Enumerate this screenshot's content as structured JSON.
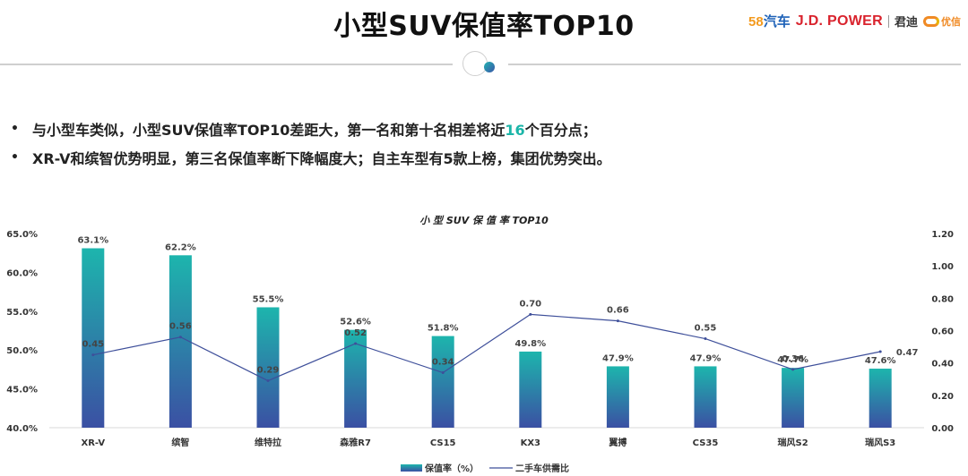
{
  "header": {
    "title": "小型SUV保值率TOP10",
    "logos": {
      "l58_num": "58",
      "l58_text": "汽车",
      "jd": "J.D. POWER",
      "jundi": "君迪",
      "youxin": "优信"
    }
  },
  "bullets": [
    {
      "prefix": "与小型车类似，小型SUV保值率TOP10差距大，第一名和第十名相差将近",
      "highlight": "16",
      "suffix": "个百分点；"
    },
    {
      "prefix": "XR-V和缤智优势明显，第三名保值率断下降幅度大；自主车型有5款上榜，集团优势突出。",
      "highlight": "",
      "suffix": ""
    }
  ],
  "bullet_marker": "•",
  "colors": {
    "bar_top": "#1db5ad",
    "bar_bottom": "#3b50a3",
    "line": "#3e4f9a",
    "accent": "#1bb5a8"
  },
  "chart_data": {
    "type": "bar+line",
    "title": "小 型 SUV 保 值 率 TOP10",
    "categories": [
      "XR-V",
      "缤智",
      "维特拉",
      "森雅R7",
      "CS15",
      "KX3",
      "翼搏",
      "CS35",
      "瑞风S2",
      "瑞风S3"
    ],
    "series": [
      {
        "name": "保值率（%）",
        "type": "bar",
        "axis": "left",
        "values": [
          63.1,
          62.2,
          55.5,
          52.6,
          51.8,
          49.8,
          47.9,
          47.9,
          47.7,
          47.6
        ],
        "labels": [
          "63.1%",
          "62.2%",
          "55.5%",
          "52.6%",
          "51.8%",
          "49.8%",
          "47.9%",
          "47.9%",
          "47.7%",
          "47.6%"
        ]
      },
      {
        "name": "二手车供需比",
        "type": "line",
        "axis": "right",
        "values": [
          0.45,
          0.56,
          0.29,
          0.52,
          0.34,
          0.7,
          0.66,
          0.55,
          0.36,
          0.47
        ],
        "labels": [
          "0.45",
          "0.56",
          "0.29",
          "0.52",
          "0.34",
          "0.70",
          "0.66",
          "0.55",
          "0.36",
          "0.47"
        ]
      }
    ],
    "y_left": {
      "min": 40,
      "max": 65,
      "ticks": [
        "40.0%",
        "45.0%",
        "50.0%",
        "55.0%",
        "60.0%",
        "65.0%"
      ]
    },
    "y_right": {
      "min": 0,
      "max": 1.2,
      "ticks": [
        "0.00",
        "0.20",
        "0.40",
        "0.60",
        "0.80",
        "1.00",
        "1.20"
      ]
    },
    "legend": [
      "保值率（%）",
      "二手车供需比"
    ],
    "legend_position": "bottom"
  }
}
